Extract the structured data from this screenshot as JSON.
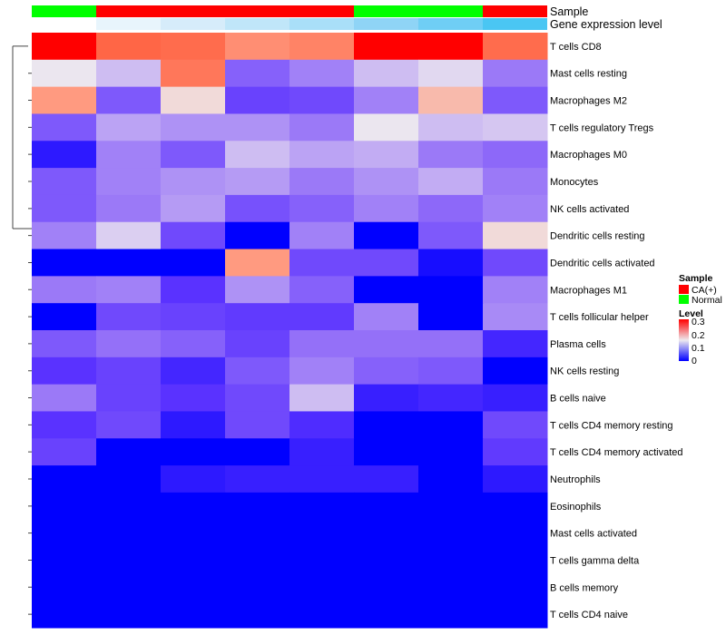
{
  "chart_data": {
    "type": "heatmap",
    "rows": [
      "T cells CD8",
      "Mast cells resting",
      "Macrophages M2",
      "T cells regulatory  Tregs",
      "Macrophages M0",
      "Monocytes",
      "NK cells activated",
      "Dendritic cells resting",
      "Dendritic cells activated",
      "Macrophages M1",
      "T cells follicular helper",
      "Plasma cells",
      "NK cells resting",
      "B cells naive",
      "T cells CD4 memory resting",
      "T cells CD4 memory activated",
      "Neutrophils",
      "Eosinophils",
      "Mast cells activated",
      "T cells gamma delta",
      "B cells memory",
      "T cells CD4 naive"
    ],
    "column_annotations": {
      "sample_label": "Sample",
      "sample": [
        "Normal",
        "CA(+)",
        "CA(+)",
        "CA(+)",
        "CA(+)",
        "Normal",
        "Normal",
        "CA(+)"
      ],
      "expression_label": "Gene expression level",
      "expression_rank": [
        0,
        1,
        2,
        3,
        4,
        5,
        6,
        7
      ]
    },
    "values": [
      [
        0.3,
        0.245,
        0.24,
        0.21,
        0.22,
        0.3,
        0.3,
        0.24
      ],
      [
        0.148,
        0.125,
        0.23,
        0.07,
        0.09,
        0.125,
        0.14,
        0.085
      ],
      [
        0.2,
        0.065,
        0.16,
        0.05,
        0.055,
        0.09,
        0.18,
        0.065
      ],
      [
        0.065,
        0.11,
        0.1,
        0.1,
        0.085,
        0.148,
        0.125,
        0.13
      ],
      [
        0.02,
        0.09,
        0.065,
        0.125,
        0.11,
        0.115,
        0.085,
        0.075
      ],
      [
        0.065,
        0.09,
        0.1,
        0.105,
        0.085,
        0.1,
        0.115,
        0.085
      ],
      [
        0.065,
        0.085,
        0.105,
        0.06,
        0.07,
        0.09,
        0.075,
        0.09
      ],
      [
        0.09,
        0.135,
        0.055,
        0.0,
        0.09,
        0.0,
        0.065,
        0.16
      ],
      [
        0.0,
        0.0,
        0.0,
        0.2,
        0.055,
        0.055,
        0.01,
        0.055
      ],
      [
        0.085,
        0.09,
        0.04,
        0.1,
        0.07,
        0.0,
        0.0,
        0.09
      ],
      [
        0.0,
        0.055,
        0.05,
        0.045,
        0.045,
        0.09,
        0.0,
        0.095
      ],
      [
        0.065,
        0.08,
        0.07,
        0.05,
        0.08,
        0.08,
        0.08,
        0.03
      ],
      [
        0.04,
        0.05,
        0.03,
        0.065,
        0.09,
        0.07,
        0.065,
        0.0
      ],
      [
        0.085,
        0.05,
        0.04,
        0.055,
        0.125,
        0.025,
        0.03,
        0.025
      ],
      [
        0.04,
        0.055,
        0.02,
        0.055,
        0.035,
        0.0,
        0.0,
        0.055
      ],
      [
        0.05,
        0.0,
        0.0,
        0.0,
        0.025,
        0.0,
        0.0,
        0.045
      ],
      [
        0.0,
        0.0,
        0.02,
        0.025,
        0.025,
        0.025,
        0.0,
        0.02
      ],
      [
        0,
        0,
        0,
        0,
        0,
        0,
        0,
        0
      ],
      [
        0,
        0,
        0,
        0,
        0,
        0,
        0,
        0
      ],
      [
        0,
        0,
        0,
        0,
        0,
        0,
        0,
        0
      ],
      [
        0,
        0,
        0,
        0,
        0,
        0,
        0,
        0
      ],
      [
        0,
        0,
        0,
        0,
        0,
        0,
        0,
        0
      ]
    ],
    "color_range": [
      0,
      0.3
    ],
    "legend": {
      "sample_title": "Sample",
      "sample_entries": [
        {
          "label": "CA(+)",
          "color": "#ff0000"
        },
        {
          "label": "Normal",
          "color": "#00ff00"
        }
      ],
      "level_title": "Level",
      "level_ticks": [
        "0.3",
        "0.2",
        "0.1",
        "0"
      ],
      "placement": "right"
    },
    "colors": {
      "low": "#0000ff",
      "mid": "#eeeaef",
      "high": "#ff0000",
      "ca": "#ff0000",
      "normal": "#00ff00"
    },
    "expression_colors": [
      "#ffffff",
      "#e8f5fc",
      "#d6ecfa",
      "#c0e6f9",
      "#a9dff8",
      "#8fd4f6",
      "#6fcef5",
      "#4ac6f3"
    ]
  }
}
